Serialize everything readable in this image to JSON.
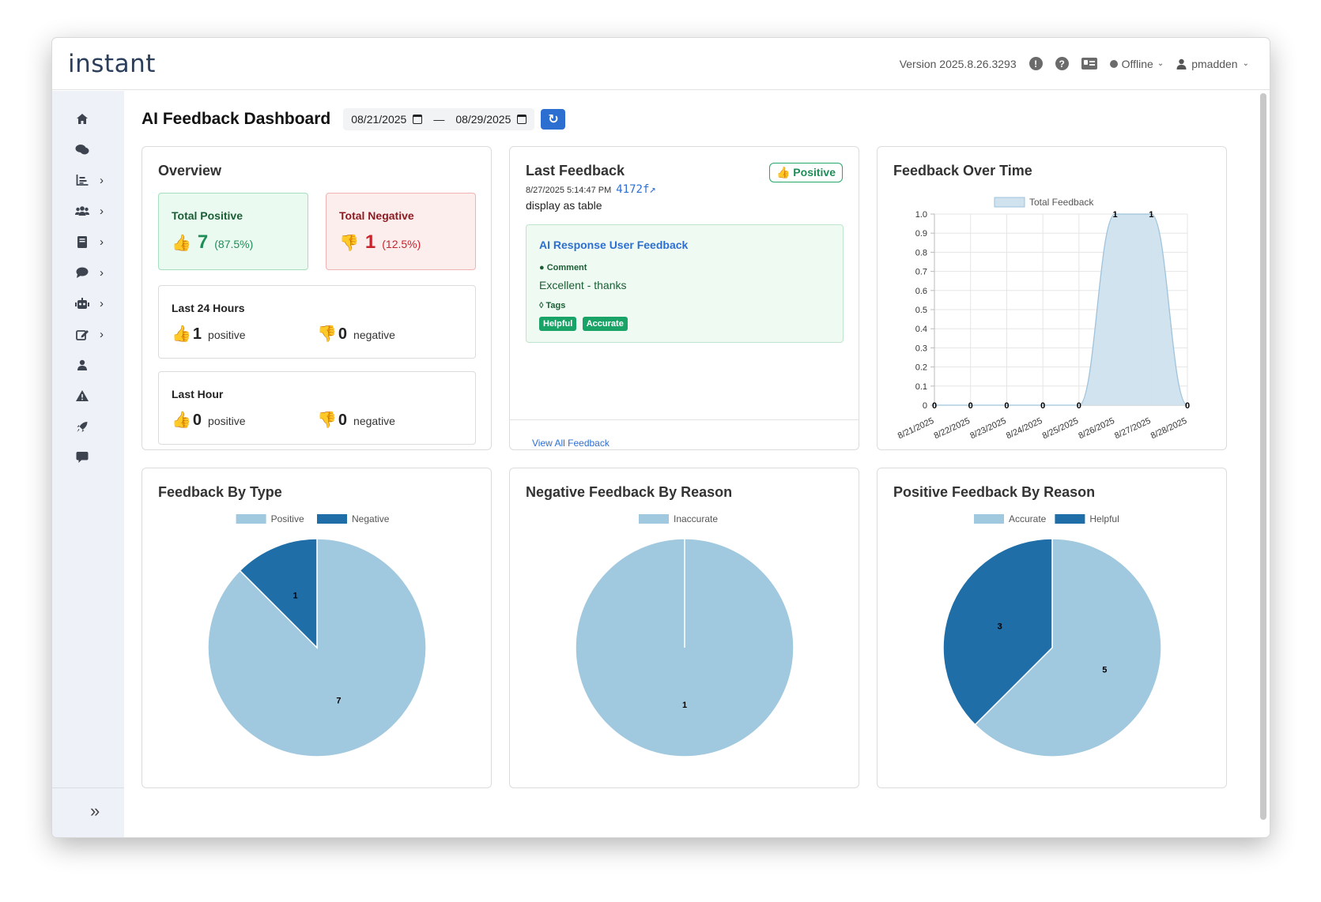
{
  "app": {
    "logo": "instant",
    "version": "Version 2025.8.26.3293",
    "status": "Offline",
    "user": "pmadden"
  },
  "icons": {
    "top": [
      "alert-icon",
      "help-icon",
      "id-card-icon",
      "status-dot-icon",
      "user-icon"
    ],
    "sidebar": [
      "home-icon",
      "chats-icon",
      "reports-icon",
      "users-icon",
      "book-icon",
      "message-icon",
      "bot-icon",
      "edit-icon",
      "person-icon",
      "warning-icon",
      "rocket-icon",
      "comment-icon",
      "collapse-icon"
    ]
  },
  "page": {
    "title": "AI Feedback Dashboard",
    "date_from": "08/21/2025",
    "date_sep": "—",
    "date_to": "08/29/2025"
  },
  "overview": {
    "title": "Overview",
    "total_positive_label": "Total Positive",
    "total_positive_value": "7",
    "total_positive_pct": "(87.5%)",
    "total_negative_label": "Total Negative",
    "total_negative_value": "1",
    "total_negative_pct": "(12.5%)",
    "last24_label": "Last 24 Hours",
    "last24_positive": "1",
    "last24_negative": "0",
    "lasthour_label": "Last Hour",
    "lasthour_positive": "0",
    "lasthour_negative": "0",
    "positive_word": "positive",
    "negative_word": "negative"
  },
  "last_feedback": {
    "title": "Last Feedback",
    "badge": "👍 Positive",
    "timestamp": "8/27/2025 5:14:47 PM",
    "hash": "4172f↗",
    "text": "display as table",
    "response_title": "AI Response User Feedback",
    "comment_label": "Comment",
    "comment": "Excellent - thanks",
    "tags_label": "Tags",
    "tags": [
      "Helpful",
      "Accurate"
    ],
    "view_all": "View All Feedback"
  },
  "colors": {
    "light_blue": "#a0c8de",
    "dark_blue": "#1f6ea8",
    "green": "#1e8d57",
    "red": "#c8232b",
    "primary": "#2d6fd1"
  },
  "chart_data": [
    {
      "type": "area",
      "title": "Feedback Over Time",
      "x": [
        "8/21/2025",
        "8/22/2025",
        "8/23/2025",
        "8/24/2025",
        "8/25/2025",
        "8/26/2025",
        "8/27/2025",
        "8/28/2025"
      ],
      "series": [
        {
          "name": "Total Feedback",
          "values": [
            0,
            0,
            0,
            0,
            0,
            1,
            1,
            0
          ]
        }
      ],
      "ylim": [
        0,
        1.0
      ],
      "yticks": [
        "0",
        "0.1",
        "0.2",
        "0.3",
        "0.4",
        "0.5",
        "0.6",
        "0.7",
        "0.8",
        "0.9",
        "1.0"
      ],
      "grid": true,
      "legend": "top"
    },
    {
      "type": "pie",
      "title": "Feedback By Type",
      "categories": [
        "Positive",
        "Negative"
      ],
      "values": [
        7,
        1
      ],
      "legend": "top"
    },
    {
      "type": "pie",
      "title": "Negative Feedback By Reason",
      "categories": [
        "Inaccurate"
      ],
      "values": [
        1
      ],
      "legend": "top"
    },
    {
      "type": "pie",
      "title": "Positive Feedback By Reason",
      "categories": [
        "Accurate",
        "Helpful"
      ],
      "values": [
        5,
        3
      ],
      "legend": "top"
    }
  ]
}
